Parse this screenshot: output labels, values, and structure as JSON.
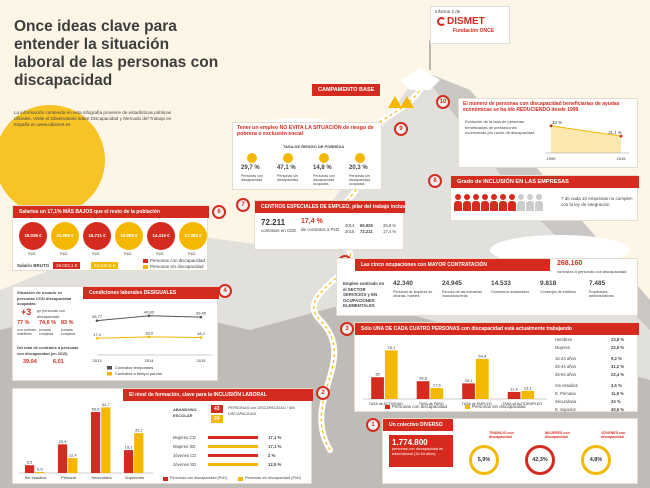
{
  "header": {
    "title": "Once ideas clave para entender la situación laboral de las personas con discapacidad",
    "intro": "La información contenida en esta infografía proviene de estadísticas públicas oficiales. Visite el Observatorio sobre Discapacidad y Mercado del Trabajo en España en www.odismet.es",
    "logo_pre": "Informe 2 de",
    "logo_name": "DISMET",
    "logo_sub": "Fundación ONCE"
  },
  "camp_label": "CAMPAMENTO BASE",
  "s1": {
    "num": "1",
    "title": "Un colectivo DIVERSO",
    "value": "1.774.800",
    "desc": "personas con discapacidad en edad laboral (16-64 años)",
    "stats": [
      {
        "value": "5,9%",
        "label": "TRABAJO con discapacidad"
      },
      {
        "value": "42,3%",
        "label": "MUJERES con discapacidad"
      },
      {
        "value": "4,8%",
        "label": "JÓVENES con discapacidad"
      }
    ]
  },
  "s2": {
    "num": "2",
    "title": "El nivel de formación, clave para la INCLUSIÓN LABORAL",
    "chart_data": {
      "type": "bar",
      "categories": [
        "Sin estudios",
        "Primaria",
        "Secundaria",
        "Superiores"
      ],
      "series": [
        {
          "name": "Personas con discapacidad (PcD)",
          "values": [
            6.5,
            23.9,
            50.8,
            19.1
          ]
        },
        {
          "name": "Personas sin discapacidad (PsD)",
          "values": [
            0.9,
            12.4,
            54.7,
            33.2
          ]
        }
      ],
      "ylim": [
        0,
        60
      ],
      "labels": [
        "6,5",
        "0,9",
        "23,9",
        "12,4",
        "50,8",
        "54,7",
        "19,1",
        "33,2"
      ]
    },
    "abandono_label": "ABANDONO ESCOLAR",
    "abandono_pcd": "43",
    "abandono_psd": "24",
    "abandono_desc": "PERSONAS con DISCAPACIDAD / SIN DISCAPACIDAD",
    "rows": [
      {
        "label": "Mujeres CD",
        "value": "17,1 %"
      },
      {
        "label": "Mujeres SD",
        "value": "17,1 %"
      },
      {
        "label": "Jóvenes CD",
        "value": "2 %"
      },
      {
        "label": "Jóvenes SD",
        "value": "12,5 %"
      }
    ]
  },
  "s3": {
    "num": "3",
    "title": "Sólo UNA DE CADA CUATRO PERSONAS con discapacidad está actualmente trabajando",
    "chart_data": {
      "type": "bar",
      "categories": [
        "TASA de ACTIVIDAD",
        "TASA de PARO",
        "TASA de EMPLEO",
        "TASA de AUTOEMPLEO"
      ],
      "series": [
        {
          "name": "Personas con discapacidad",
          "values": [
            35.0,
            28.6,
            25.1,
            11.4
          ]
        },
        {
          "name": "Personas sin discapacidad",
          "values": [
            78.1,
            17.6,
            64.4,
            13.1
          ]
        }
      ],
      "ylim": [
        0,
        90
      ],
      "labels": [
        "35",
        "78,1",
        "28,6",
        "17,6",
        "25,1",
        "64,4",
        "11,4",
        "13,1"
      ]
    },
    "rows": [
      {
        "label": "Hombres",
        "value": "23,8 %"
      },
      {
        "label": "Mujeres",
        "value": "22,9 %"
      },
      {
        "label": "16-24 años",
        "value": "9,2 %"
      },
      {
        "label": "25-44 años",
        "value": "31,2 %"
      },
      {
        "label": "45-64 años",
        "value": "22,4 %"
      },
      {
        "label": "Sin estudios",
        "value": "3,5 %"
      },
      {
        "label": "E. Primaria",
        "value": "11,8 %"
      },
      {
        "label": "Secundaria",
        "value": "24 %"
      },
      {
        "label": "E. Superior",
        "value": "40,6 %"
      }
    ]
  },
  "s4": {
    "num": "4",
    "title": "Condiciones laborales DESIGUALES",
    "chart_data": {
      "type": "line",
      "x": [
        "2013",
        "2014",
        "2015"
      ],
      "series": [
        {
          "name": "Contratos temporales",
          "values": [
            35.77,
            40.83,
            39.45
          ]
        },
        {
          "name": "Contratos a tiempo parcial",
          "values": [
            17.4,
            18.9,
            18.2
          ]
        }
      ],
      "labels": [
        "35,77",
        "40,83",
        "39,45",
        "17,4",
        "18,9",
        "18,2"
      ]
    },
    "left_title": "Situación de usuario en personas CON discapacidad ocupadas",
    "plus": "+3",
    "plus_label": "pp personas con discapacidad",
    "pcts": [
      {
        "value": "77 %",
        "label": "con contrato indefinido"
      },
      {
        "value": "74,6 %",
        "label": "jornada completa"
      },
      {
        "value": "83 %",
        "label": "jornada completa"
      }
    ],
    "contract_label": "Del total de contratos a personas con discapacidad (en 2015)",
    "contract_a": "39,04",
    "contract_b": "6,01"
  },
  "s5": {
    "num": "5",
    "title": "Las cinco ocupaciones con MAYOR CONTRATACIÓN",
    "total": "268.160",
    "total_label": "contratos a personas con discapacidad",
    "lead": "Empleo centrado en el SECTOR SERVICIOS y EN OCUPACIONES ELEMENTALES",
    "items": [
      {
        "value": "42.340",
        "label": "Personal de limpieza de oficinas, hoteles"
      },
      {
        "value": "24.945",
        "label": "Peones de las industrias manufactureras"
      },
      {
        "value": "14.533",
        "label": "Camareros asalariados"
      },
      {
        "value": "9.818",
        "label": "Conserjes de edificios"
      },
      {
        "value": "7.485",
        "label": "Empleados administrativos"
      }
    ]
  },
  "s6": {
    "num": "6",
    "title": "Salarios un 17,1% MÁS BAJOS que el resto de la población",
    "wages": [
      {
        "value": "19.035 €",
        "tag": "PcD"
      },
      {
        "value": "22.858 €",
        "tag": "PsD"
      },
      {
        "value": "16.721 €",
        "tag": "PcD"
      },
      {
        "value": "19.808 €",
        "tag": "PsD"
      },
      {
        "value": "14.416 €",
        "tag": "PcD"
      },
      {
        "value": "17.393 €",
        "tag": "PsD"
      }
    ],
    "bruto_label": "Salario BRUTO",
    "bruto_pcd": "19.023,1 €",
    "bruto_psd": "22.848,5 €",
    "legend": [
      "Personas con discapacidad",
      "Personas sin discapacidad"
    ]
  },
  "s7": {
    "num": "7",
    "title": "CENTROS ESPECIALES DE EMPLEO, pilar del trabajo inclusivo",
    "value": "72.211",
    "value_label": "contratos en CEE",
    "pct": "17,4 %",
    "pct_label": "de contratos a PcD",
    "rows": [
      {
        "year": "2014",
        "a": "65.925",
        "b": "25,9 %"
      },
      {
        "year": "2015",
        "a": "72.211",
        "b": "17,4 %"
      }
    ]
  },
  "s8": {
    "num": "8",
    "title": "Grado de INCLUSIÓN EN LAS EMPRESAS",
    "text": "7 de cada 10 empresas no cumplen con la ley de integración"
  },
  "s9": {
    "num": "9",
    "title": "Tener un empleo NO EVITA LA SITUACIÓN de riesgo de pobreza o exclusión social",
    "sub": "TASA DE RIESGO DE POBREZA",
    "stats": [
      {
        "value": "29,7 %",
        "label": "Personas con discapacidad"
      },
      {
        "value": "47,1 %",
        "label": "Personas sin discapacidad"
      },
      {
        "value": "14,8 %",
        "label": "Personas con discapacidad ocupadas"
      },
      {
        "value": "20,3 %",
        "label": "Personas sin discapacidad ocupadas"
      }
    ]
  },
  "s10": {
    "num": "10",
    "title": "El número de personas con discapacidad beneficiarias de ayudas económicas se ha ido REDUCIENDO desde 1999",
    "text": "Evolución de la tasa de personas beneficiarias de prestaciones económicas por razón de discapacidad",
    "chart_data": {
      "type": "line",
      "x": [
        "1999",
        "2015"
      ],
      "series": [
        {
          "name": "",
          "values": [
            34.0,
            21.1
          ]
        }
      ],
      "labels": [
        "34 %",
        "21,1 %"
      ]
    }
  }
}
